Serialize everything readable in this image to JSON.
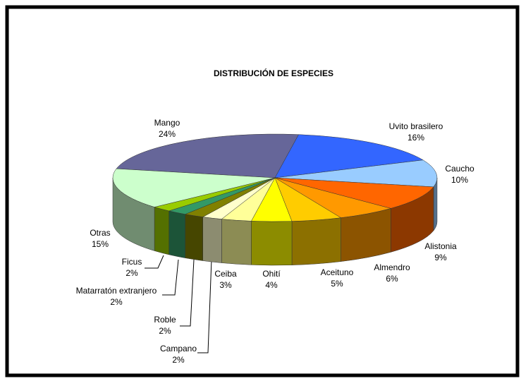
{
  "chart_data": {
    "type": "pie",
    "title": "DISTRIBUCIÓN DE ESPECIES",
    "categories": [
      "Mango",
      "Uvito brasilero",
      "Caucho",
      "Alistonia",
      "Almendro",
      "Aceituno",
      "Ohití",
      "Ceiba",
      "Campano",
      "Roble",
      "Matarratón extranjero",
      "Ficus",
      "Otras"
    ],
    "values": [
      24,
      16,
      10,
      9,
      6,
      5,
      4,
      3,
      2,
      2,
      2,
      2,
      15
    ],
    "value_labels": [
      "24%",
      "16%",
      "10%",
      "9%",
      "6%",
      "5%",
      "4%",
      "3%",
      "2%",
      "2%",
      "2%",
      "2%",
      "15%"
    ],
    "colors": [
      "#666699",
      "#3366ff",
      "#99ccff",
      "#ff6600",
      "#ff9900",
      "#ffcc00",
      "#ffff00",
      "#ffff99",
      "#ffffcc",
      "#808000",
      "#339966",
      "#99cc00",
      "#ccffcc"
    ]
  }
}
